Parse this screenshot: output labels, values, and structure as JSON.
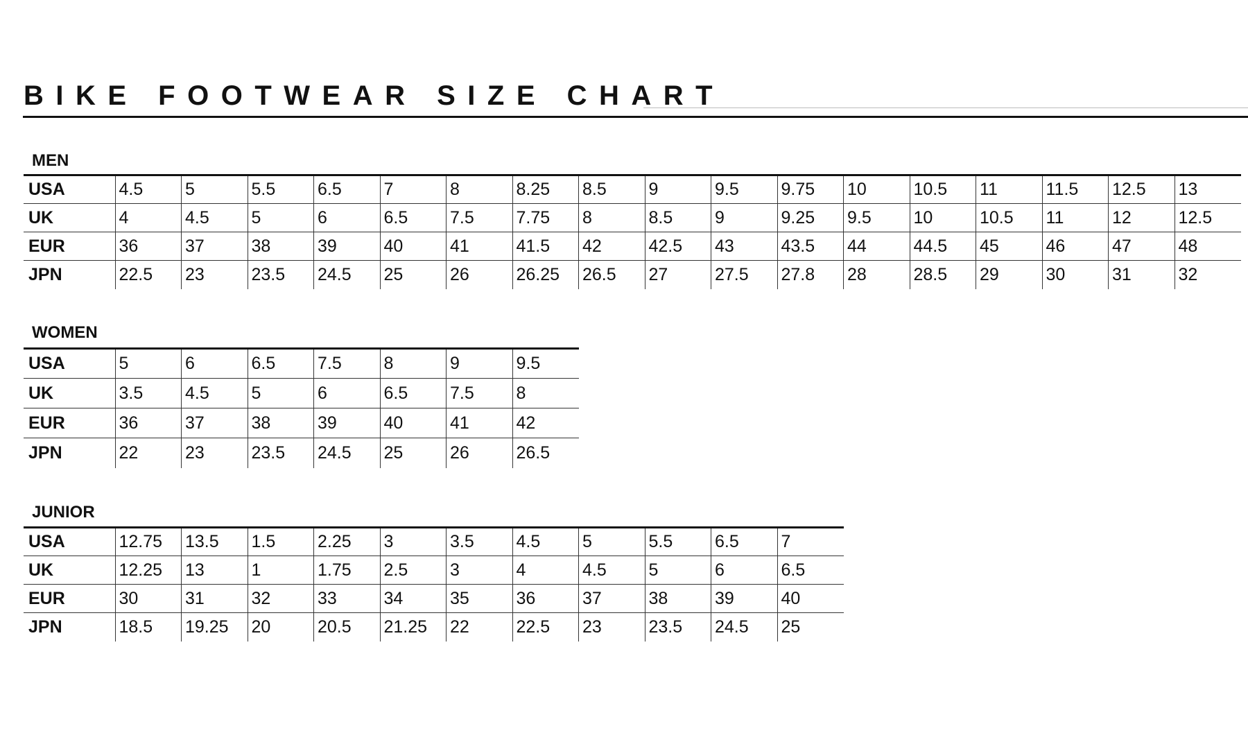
{
  "title": "BIKE FOOTWEAR SIZE CHART",
  "sections": [
    {
      "label": "MEN",
      "rows": [
        {
          "label": "USA",
          "values": [
            "4.5",
            "5",
            "5.5",
            "6.5",
            "7",
            "8",
            "8.25",
            "8.5",
            "9",
            "9.5",
            "9.75",
            "10",
            "10.5",
            "11",
            "11.5",
            "12.5",
            "13"
          ]
        },
        {
          "label": "UK",
          "values": [
            "4",
            "4.5",
            "5",
            "6",
            "6.5",
            "7.5",
            "7.75",
            "8",
            "8.5",
            "9",
            "9.25",
            "9.5",
            "10",
            "10.5",
            "11",
            "12",
            "12.5"
          ]
        },
        {
          "label": "EUR",
          "values": [
            "36",
            "37",
            "38",
            "39",
            "40",
            "41",
            "41.5",
            "42",
            "42.5",
            "43",
            "43.5",
            "44",
            "44.5",
            "45",
            "46",
            "47",
            "48"
          ]
        },
        {
          "label": "JPN",
          "values": [
            "22.5",
            "23",
            "23.5",
            "24.5",
            "25",
            "26",
            "26.25",
            "26.5",
            "27",
            "27.5",
            "27.8",
            "28",
            "28.5",
            "29",
            "30",
            "31",
            "32"
          ]
        }
      ]
    },
    {
      "label": "WOMEN",
      "rows": [
        {
          "label": "USA",
          "values": [
            "5",
            "6",
            "6.5",
            "7.5",
            "8",
            "9",
            "9.5"
          ]
        },
        {
          "label": "UK",
          "values": [
            "3.5",
            "4.5",
            "5",
            "6",
            "6.5",
            "7.5",
            "8"
          ]
        },
        {
          "label": "EUR",
          "values": [
            "36",
            "37",
            "38",
            "39",
            "40",
            "41",
            "42"
          ]
        },
        {
          "label": "JPN",
          "values": [
            "22",
            "23",
            "23.5",
            "24.5",
            "25",
            "26",
            "26.5"
          ]
        }
      ]
    },
    {
      "label": "JUNIOR",
      "rows": [
        {
          "label": "USA",
          "values": [
            "12.75",
            "13.5",
            "1.5",
            "2.25",
            "3",
            "3.5",
            "4.5",
            "5",
            "5.5",
            "6.5",
            "7"
          ]
        },
        {
          "label": "UK",
          "values": [
            "12.25",
            "13",
            "1",
            "1.75",
            "2.5",
            "3",
            "4",
            "4.5",
            "5",
            "6",
            "6.5"
          ]
        },
        {
          "label": "EUR",
          "values": [
            "30",
            "31",
            "32",
            "33",
            "34",
            "35",
            "36",
            "37",
            "38",
            "39",
            "40"
          ]
        },
        {
          "label": "JPN",
          "values": [
            "18.5",
            "19.25",
            "20",
            "20.5",
            "21.25",
            "22",
            "22.5",
            "23",
            "23.5",
            "24.5",
            "25"
          ]
        }
      ]
    }
  ]
}
